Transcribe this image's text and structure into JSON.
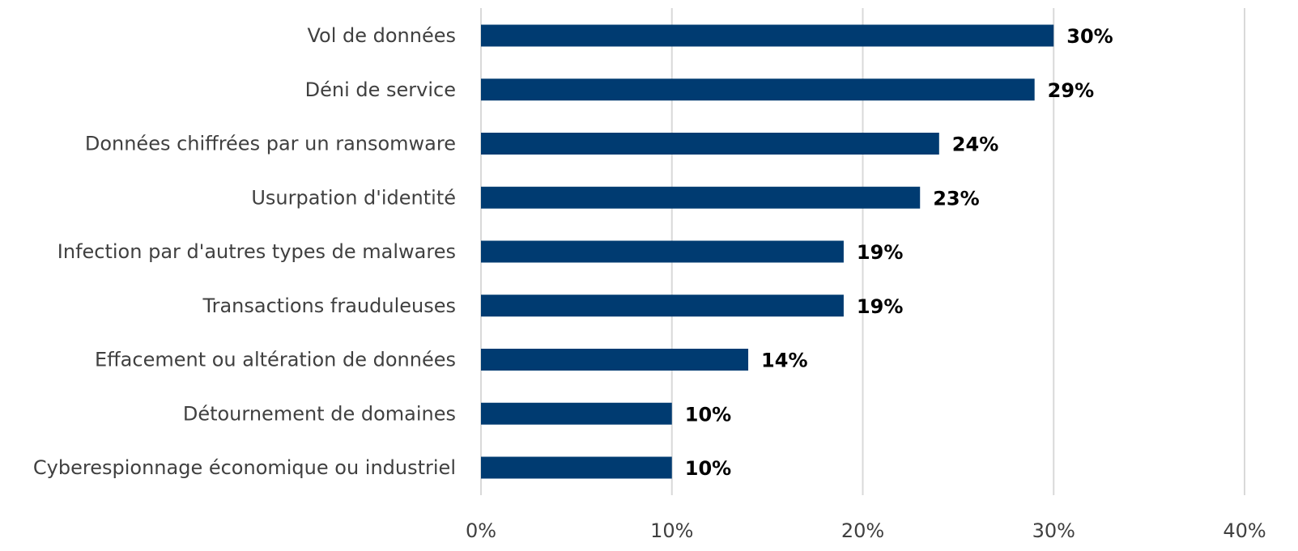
{
  "chart_data": {
    "type": "bar",
    "orientation": "horizontal",
    "categories": [
      "Vol de données",
      "Déni de service",
      "Données chiffrées par un ransomware",
      "Usurpation d'identité",
      "Infection par d'autres types de malwares",
      "Transactions frauduleuses",
      "Effacement ou altération de données",
      "Détournement de domaines",
      "Cyberespionnage économique ou industriel"
    ],
    "values": [
      30,
      29,
      24,
      23,
      19,
      19,
      14,
      10,
      10
    ],
    "data_labels": [
      "30%",
      "29%",
      "24%",
      "23%",
      "19%",
      "19%",
      "14%",
      "10%",
      "10%"
    ],
    "xlim": [
      0,
      40
    ],
    "x_ticks": [
      0,
      10,
      20,
      30,
      40
    ],
    "x_tick_labels": [
      "0%",
      "10%",
      "20%",
      "30%",
      "40%"
    ],
    "grid": "vertical",
    "legend": "none",
    "bar_color": "#003b71"
  }
}
